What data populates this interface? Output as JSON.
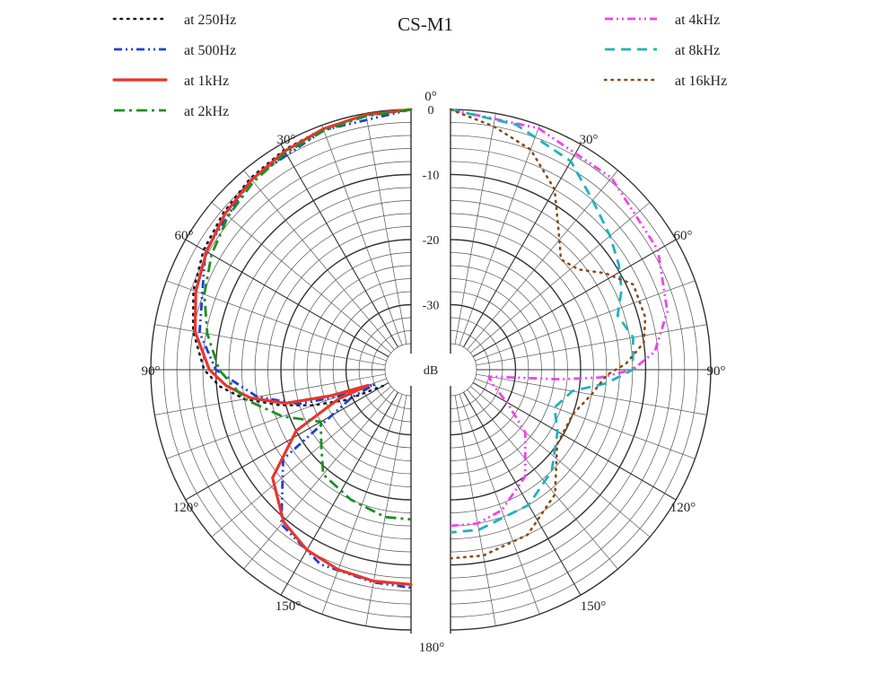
{
  "chart_data": {
    "type": "polar",
    "title": "CS-M1",
    "radial_unit": "dB",
    "radial_range": [
      -40,
      0
    ],
    "radial_ticks": [
      "0",
      "-10",
      "-20",
      "-30"
    ],
    "angle_labels": [
      "0°",
      "30°",
      "60°",
      "90°",
      "120°",
      "150°",
      "180°",
      "30°",
      "60°",
      "90°",
      "120°",
      "150°"
    ],
    "panels": [
      {
        "side": "left",
        "series": [
          {
            "name": "at 250Hz",
            "color": "#1a1a2e",
            "style": "dotted",
            "points": [
              [
                0,
                0
              ],
              [
                10,
                -0.3
              ],
              [
                20,
                -0.6
              ],
              [
                30,
                -1
              ],
              [
                40,
                -1.6
              ],
              [
                50,
                -2.4
              ],
              [
                60,
                -3.2
              ],
              [
                70,
                -4.4
              ],
              [
                80,
                -6
              ],
              [
                90,
                -8.2
              ],
              [
                95,
                -10.5
              ],
              [
                100,
                -14
              ],
              [
                105,
                -19
              ],
              [
                110,
                -24
              ],
              [
                115,
                -29
              ],
              [
                120,
                -35
              ]
            ]
          },
          {
            "name": "at 500Hz",
            "color": "#1f3fd6",
            "style": "dash-dot-dot",
            "points": [
              [
                0,
                0
              ],
              [
                20,
                -0.8
              ],
              [
                40,
                -1.8
              ],
              [
                60,
                -3.5
              ],
              [
                80,
                -7
              ],
              [
                90,
                -10
              ],
              [
                100,
                -16
              ],
              [
                107,
                -22
              ],
              [
                110,
                -28
              ],
              [
                112,
                -34
              ],
              [
                115,
                -30
              ],
              [
                125,
                -16
              ],
              [
                140,
                -9
              ],
              [
                155,
                -7
              ],
              [
                170,
                -6.8
              ],
              [
                180,
                -6.5
              ]
            ]
          },
          {
            "name": "at 1kHz",
            "color": "#e8362a",
            "style": "solid",
            "points": [
              [
                0,
                0
              ],
              [
                10,
                -0.2
              ],
              [
                20,
                -0.6
              ],
              [
                30,
                -1.2
              ],
              [
                40,
                -1.9
              ],
              [
                50,
                -2.7
              ],
              [
                60,
                -3.7
              ],
              [
                70,
                -4.8
              ],
              [
                80,
                -6.3
              ],
              [
                90,
                -9
              ],
              [
                95,
                -11.5
              ],
              [
                100,
                -15
              ],
              [
                105,
                -20
              ],
              [
                108,
                -27
              ],
              [
                110,
                -33
              ],
              [
                112,
                -28
              ],
              [
                118,
                -20
              ],
              [
                128,
                -13
              ],
              [
                140,
                -9.5
              ],
              [
                150,
                -8
              ],
              [
                160,
                -7.3
              ],
              [
                170,
                -7
              ],
              [
                180,
                -7
              ]
            ]
          },
          {
            "name": "at 2kHz",
            "color": "#1d8f22",
            "style": "dash-dot",
            "points": [
              [
                0,
                0
              ],
              [
                10,
                -0.4
              ],
              [
                20,
                -0.9
              ],
              [
                30,
                -1.5
              ],
              [
                40,
                -2.3
              ],
              [
                50,
                -3.3
              ],
              [
                60,
                -4.6
              ],
              [
                70,
                -6.2
              ],
              [
                80,
                -8.2
              ],
              [
                90,
                -10.5
              ],
              [
                100,
                -14
              ],
              [
                110,
                -19
              ],
              [
                120,
                -24
              ],
              [
                130,
                -22
              ],
              [
                140,
                -19
              ],
              [
                155,
                -18
              ],
              [
                170,
                -17
              ],
              [
                180,
                -17
              ]
            ]
          }
        ]
      },
      {
        "side": "right",
        "series": [
          {
            "name": "at 4kHz",
            "color": "#ee44ee",
            "style": "dash-dot-dot",
            "points": [
              [
                0,
                0
              ],
              [
                20,
                -0.5
              ],
              [
                40,
                -1.5
              ],
              [
                60,
                -3.2
              ],
              [
                75,
                -5.5
              ],
              [
                85,
                -8.5
              ],
              [
                90,
                -12
              ],
              [
                93,
                -17
              ],
              [
                95,
                -23
              ],
              [
                97,
                -30
              ],
              [
                100,
                -34
              ],
              [
                110,
                -33
              ],
              [
                120,
                -30
              ],
              [
                130,
                -25
              ],
              [
                145,
                -20
              ],
              [
                160,
                -17
              ],
              [
                170,
                -16
              ],
              [
                180,
                -16
              ]
            ]
          },
          {
            "name": "at 8kHz",
            "color": "#1fb2bf",
            "style": "dashed",
            "points": [
              [
                0,
                0
              ],
              [
                15,
                -1
              ],
              [
                30,
                -3
              ],
              [
                40,
                -6
              ],
              [
                50,
                -8
              ],
              [
                58,
                -9.5
              ],
              [
                65,
                -11
              ],
              [
                72,
                -13
              ],
              [
                80,
                -11.5
              ],
              [
                90,
                -12
              ],
              [
                95,
                -16
              ],
              [
                100,
                -21
              ],
              [
                110,
                -23
              ],
              [
                120,
                -21
              ],
              [
                135,
                -18
              ],
              [
                150,
                -16
              ],
              [
                170,
                -15
              ],
              [
                180,
                -15
              ]
            ]
          },
          {
            "name": "at 16kHz",
            "color": "#8b4a16",
            "style": "dotted",
            "points": [
              [
                0,
                0
              ],
              [
                10,
                -2
              ],
              [
                20,
                -4
              ],
              [
                30,
                -8
              ],
              [
                38,
                -13
              ],
              [
                45,
                -16
              ],
              [
                52,
                -15
              ],
              [
                58,
                -12
              ],
              [
                65,
                -9
              ],
              [
                75,
                -9
              ],
              [
                82,
                -10
              ],
              [
                88,
                -13
              ],
              [
                92,
                -16
              ],
              [
                100,
                -18
              ],
              [
                110,
                -20
              ],
              [
                125,
                -20
              ],
              [
                140,
                -15
              ],
              [
                155,
                -12
              ],
              [
                170,
                -11
              ],
              [
                180,
                -11
              ]
            ]
          }
        ]
      }
    ]
  }
}
